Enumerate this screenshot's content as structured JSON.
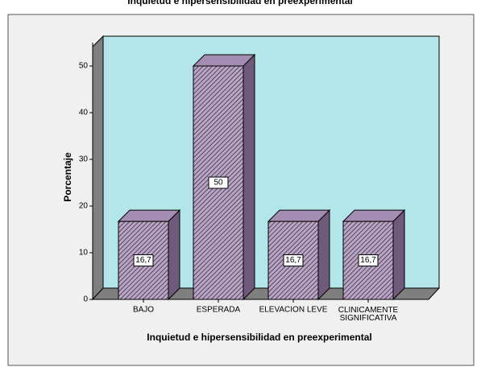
{
  "chart_data": {
    "type": "bar3d",
    "title": "Inquietud e hipersensibilidad en preexperimental",
    "x_label": "Inquietud e hipersensibilidad en preexperimental",
    "y_label": "Porcentaje",
    "categories": [
      "BAJO",
      "ESPERADA",
      "ELEVACION LEVE",
      "CLINICAMENTE SIGNIFICATIVA"
    ],
    "values": [
      16.7,
      50,
      16.7,
      16.7
    ],
    "value_labels": [
      "16,7",
      "50",
      "16,7",
      "16,7"
    ],
    "color": "#9e88aa",
    "ylim": [
      0,
      55
    ],
    "yticks": [
      0,
      10,
      20,
      30,
      40,
      50
    ]
  }
}
